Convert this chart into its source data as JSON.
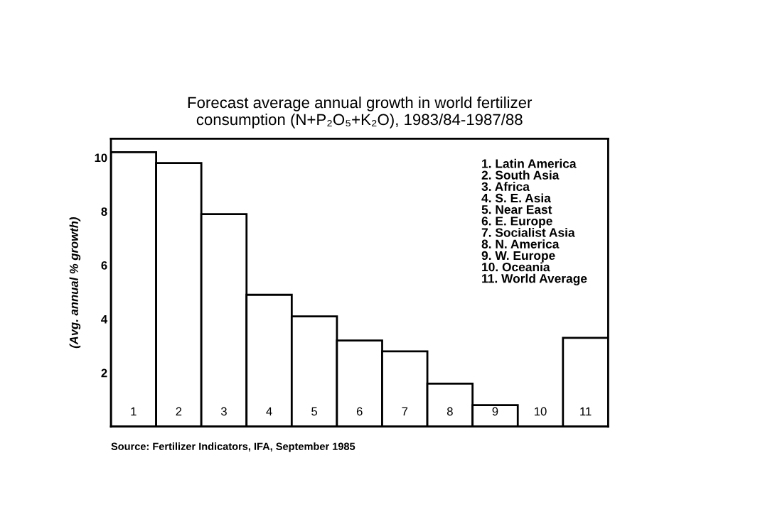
{
  "chart_data": {
    "type": "bar",
    "title": "Forecast average annual growth in world fertilizer\nconsumption (N+P₂O₅+K₂O), 1983/84-1987/88",
    "ylabel": "(Avg. annual % growth)",
    "categories": [
      "1",
      "2",
      "3",
      "4",
      "5",
      "6",
      "7",
      "8",
      "9",
      "10",
      "11"
    ],
    "values": [
      10.2,
      9.8,
      7.9,
      4.9,
      4.1,
      3.2,
      2.8,
      1.6,
      0.8,
      0,
      3.3
    ],
    "color": "#ffffff",
    "ylim": [
      0,
      10.7
    ],
    "yticks": [
      2,
      4,
      6,
      8,
      10
    ],
    "grid": false,
    "annotations": [
      "1. Latin America\n2. South Asia\n3. Africa\n4. S. E. Asia\n5. Near East\n6. E. Europe\n7. Socialist Asia\n8. N. America\n9. W. Europe\n10. Oceania\n11. World Average",
      "Source: Fertilizer Indicators, IFA, September 1985"
    ]
  }
}
